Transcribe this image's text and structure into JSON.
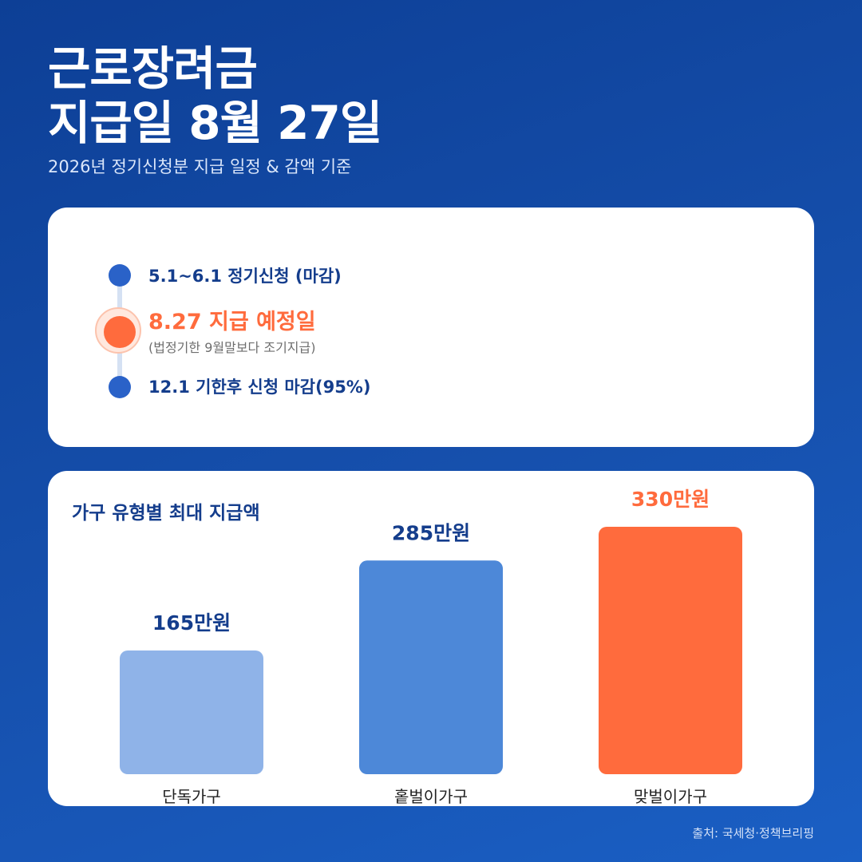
{
  "header": {
    "title_line1": "근로장려금",
    "title_line2": "지급일 8월 27일",
    "subtitle": "2026년 정기신청분 지급 일정 & 감액 기준"
  },
  "timeline": {
    "items": [
      {
        "label": "5.1~6.1 정기신청 (마감)"
      },
      {
        "label": "8.27 지급 예정일",
        "note": "(법정기한 9월말보다 조기지급)"
      },
      {
        "label": "12.1 기한후 신청 마감(95%)"
      }
    ]
  },
  "chart_data": {
    "type": "bar",
    "title": "가구 유형별 최대 지급액",
    "categories": [
      "단독가구",
      "홑벌이가구",
      "맞벌이가구"
    ],
    "values": [
      165,
      285,
      330
    ],
    "value_labels": [
      "165만원",
      "285만원",
      "330만원"
    ],
    "unit": "만원",
    "colors": [
      "#8fb3e8",
      "#4d88d8",
      "#ff6b3d"
    ],
    "label_colors": [
      "#143d8c",
      "#143d8c",
      "#ff6b3d"
    ],
    "ylim": [
      0,
      330
    ],
    "grid": false
  },
  "footer": {
    "source": "출처: 국세청·정책브리핑"
  },
  "colors": {
    "background": "#1650ad",
    "accent": "#ff6b3d",
    "navy": "#143d8c",
    "timeline_dot": "#2a62c8"
  }
}
